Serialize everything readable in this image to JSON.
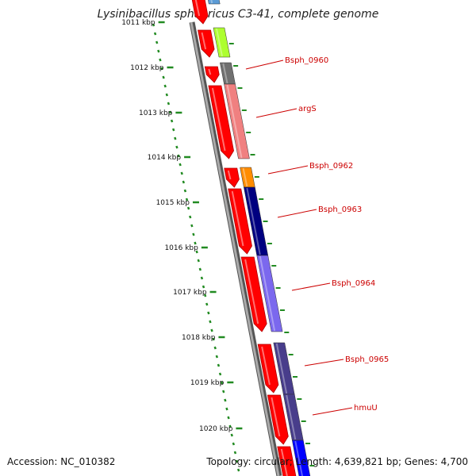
{
  "header": {
    "title": "Lysinibacillus sphaericus C3-41, complete genome"
  },
  "footer": {
    "accession": "Accession: NC_010382",
    "summary": "Topology: circular; Length: 4,639,821 bp; Genes: 4,700"
  },
  "colors": {
    "backbone": "#888888",
    "forward_strand": "#ff0000",
    "tick": "#228b22",
    "label": "#cc0000"
  },
  "scale": {
    "labels": [
      "1011 kbp",
      "1012 kbp",
      "1013 kbp",
      "1014 kbp",
      "1015 kbp",
      "1016 kbp",
      "1017 kbp",
      "1018 kbp",
      "1019 kbp",
      "1020 kbp"
    ]
  },
  "genes": [
    {
      "name": "Bsph_0960",
      "color": "#707070"
    },
    {
      "name": "argS",
      "color": "#f08080"
    },
    {
      "name": "Bsph_0962",
      "color": "#ff8c00"
    },
    {
      "name": "Bsph_0963",
      "color": "#000080"
    },
    {
      "name": "Bsph_0964",
      "color": "#7b68ee"
    },
    {
      "name": "Bsph_0965",
      "color": "#483d8b"
    },
    {
      "name": "hmuU",
      "color": "#483d8b"
    }
  ]
}
